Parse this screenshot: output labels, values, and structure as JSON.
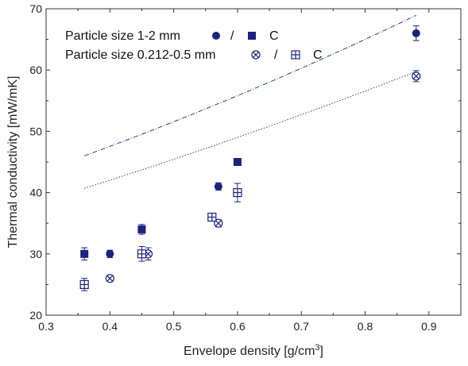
{
  "chart_data": {
    "type": "scatter",
    "xlabel": "Envelope density [g/cm",
    "xlabel_sup": "3",
    "xlabel_end": "]",
    "ylabel": "Thermal conductivity [mW/mK]",
    "xlim": [
      0.3,
      0.95
    ],
    "ylim": [
      20,
      70
    ],
    "xticks": [
      0.3,
      0.4,
      0.5,
      0.6,
      0.7,
      0.8,
      0.9
    ],
    "yticks": [
      20,
      30,
      40,
      50,
      60,
      70
    ],
    "grid": false,
    "legend_position": "top-left",
    "legend": [
      {
        "text": "Particle size 1-2 mm",
        "separator": "/",
        "suffix": "C",
        "symbols": [
          "filled-circle",
          "filled-square"
        ]
      },
      {
        "text": "Particle size 0.212-0.5 mm",
        "separator": "/",
        "suffix": "C",
        "symbols": [
          "crossed-circle",
          "plus-square"
        ]
      }
    ],
    "series": [
      {
        "marker": "filled-circle",
        "color": "#1a237e",
        "points": [
          [
            0.4,
            30.0
          ],
          [
            0.57,
            41.0
          ],
          [
            0.88,
            66.0
          ]
        ],
        "err": [
          0.6,
          0.6,
          1.2
        ]
      },
      {
        "marker": "filled-square",
        "color": "#1a237e",
        "points": [
          [
            0.36,
            30.0
          ],
          [
            0.45,
            34.0
          ],
          [
            0.6,
            45.0
          ]
        ],
        "err": [
          1.0,
          0.8,
          0.4
        ]
      },
      {
        "marker": "crossed-circle",
        "color": "#1a237e",
        "points": [
          [
            0.4,
            26.0
          ],
          [
            0.46,
            30.0
          ],
          [
            0.57,
            35.0
          ],
          [
            0.88,
            59.0
          ]
        ],
        "err": [
          0.5,
          1.0,
          0.6,
          0.9
        ]
      },
      {
        "marker": "plus-square",
        "color": "#1a237e",
        "points": [
          [
            0.36,
            25.0
          ],
          [
            0.45,
            30.0
          ],
          [
            0.56,
            36.0
          ],
          [
            0.6,
            40.0
          ]
        ],
        "err": [
          1.0,
          1.2,
          0.5,
          1.5
        ]
      }
    ],
    "fits": [
      {
        "style": "dashdot",
        "color": "#2b3a8f",
        "x_range": [
          0.36,
          0.88
        ],
        "a": 11.35,
        "b": 30.02,
        "c": 33.72
      },
      {
        "style": "dotted",
        "color": "#2b3a8f",
        "x_range": [
          0.36,
          0.88
        ],
        "a": 7.27,
        "b": 27.63,
        "c": 29.81
      }
    ]
  }
}
